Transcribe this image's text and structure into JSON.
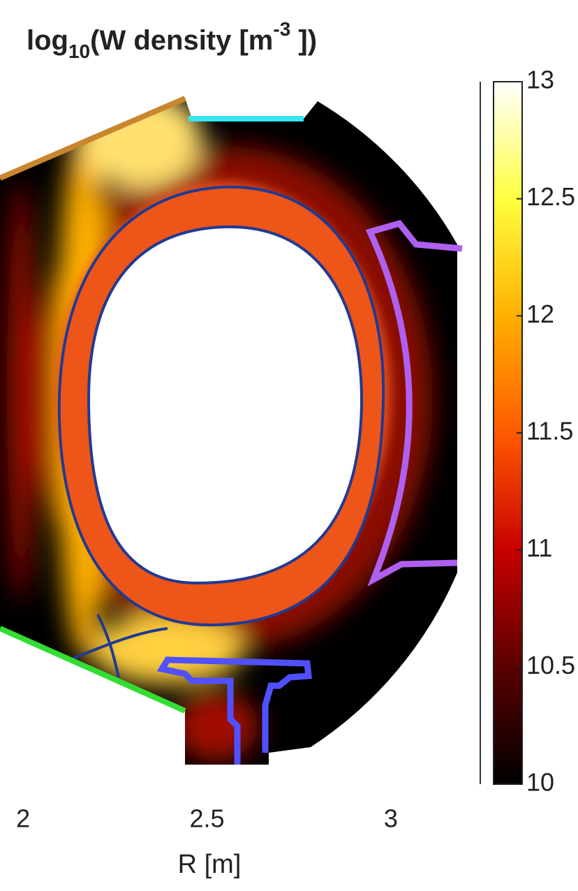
{
  "chart_data": {
    "type": "heatmap",
    "title": [
      "log",
      "10",
      "(W density [m",
      "-3",
      " ])"
    ],
    "xlabel": "R [m]",
    "xlim": [
      1.937,
      3.209
    ],
    "xticks": [
      2,
      2.5,
      3
    ],
    "colorbar": {
      "lim": [
        10,
        13
      ],
      "ticks": [
        10,
        10.5,
        11,
        11.5,
        12,
        12.5,
        13
      ],
      "colormap": [
        "#000000",
        "#5a0000",
        "#c80000",
        "#ff5a00",
        "#ffb000",
        "#ffff40",
        "#ffffff"
      ]
    }
  }
}
